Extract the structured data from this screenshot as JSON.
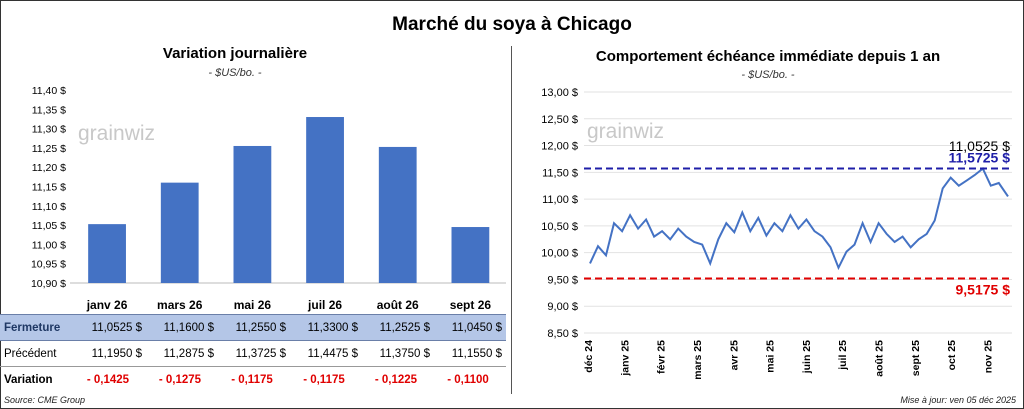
{
  "title": "Marché du soya à Chicago",
  "left": {
    "title": "Variation  journalière",
    "unit": "- $US/bo. -",
    "watermark": "grainwiz",
    "table": {
      "rows": [
        {
          "label": "Fermeture",
          "values": [
            "11,0525  $",
            "11,1600  $",
            "11,2550  $",
            "11,3300  $",
            "11,2525  $",
            "11,0450  $"
          ]
        },
        {
          "label": "Précédent",
          "values": [
            "11,1950  $",
            "11,2875  $",
            "11,3725  $",
            "11,4475  $",
            "11,3750  $",
            "11,1550  $"
          ]
        },
        {
          "label": "Variation",
          "values": [
            "- 0,1425",
            "- 0,1275",
            "- 0,1175",
            "- 0,1175",
            "- 0,1225",
            "- 0,1100"
          ]
        }
      ]
    }
  },
  "right": {
    "title": "Comportement  échéance immédiate depuis 1 an",
    "unit": "- $US/bo. -",
    "watermark": "grainwiz"
  },
  "footer": {
    "source": "Source: CME Group",
    "updated": "Mise à jour: ven 05 déc 2025"
  },
  "chart_data": [
    {
      "type": "bar",
      "title": "Variation  journalière",
      "categories": [
        "janv 26",
        "mars 26",
        "mai 26",
        "juil 26",
        "août 26",
        "sept 26"
      ],
      "values": [
        11.0525,
        11.16,
        11.255,
        11.33,
        11.2525,
        11.045
      ],
      "ylim": [
        10.9,
        11.4
      ],
      "yticks": [
        "10,90 $",
        "10,95 $",
        "11,00 $",
        "11,05 $",
        "11,10 $",
        "11,15 $",
        "11,20 $",
        "11,25 $",
        "11,30 $",
        "11,35 $",
        "11,40 $"
      ],
      "color": "#4472c4",
      "grid": false
    },
    {
      "type": "line",
      "title": "Comportement  échéance immédiate depuis 1 an",
      "xlabels": [
        "déc 24",
        "janv 25",
        "févr 25",
        "mars 25",
        "avr 25",
        "mai 25",
        "juin 25",
        "juil 25",
        "août 25",
        "sept 25",
        "oct 25",
        "nov 25"
      ],
      "ylim": [
        8.5,
        13.0
      ],
      "yticks": [
        "8,50 $",
        "9,00 $",
        "9,50 $",
        "10,00 $",
        "10,50 $",
        "11,00 $",
        "11,50 $",
        "12,00 $",
        "12,50 $",
        "13,00 $"
      ],
      "x": [
        "2024-12-05",
        "2024-12-12",
        "2024-12-19",
        "2024-12-26",
        "2025-01-02",
        "2025-01-09",
        "2025-01-16",
        "2025-01-23",
        "2025-01-30",
        "2025-02-06",
        "2025-02-13",
        "2025-02-20",
        "2025-02-27",
        "2025-03-06",
        "2025-03-13",
        "2025-03-20",
        "2025-03-27",
        "2025-04-03",
        "2025-04-10",
        "2025-04-17",
        "2025-04-24",
        "2025-05-01",
        "2025-05-08",
        "2025-05-15",
        "2025-05-22",
        "2025-05-29",
        "2025-06-05",
        "2025-06-12",
        "2025-06-19",
        "2025-06-26",
        "2025-07-03",
        "2025-07-10",
        "2025-07-17",
        "2025-07-24",
        "2025-07-31",
        "2025-08-07",
        "2025-08-14",
        "2025-08-21",
        "2025-08-28",
        "2025-09-04",
        "2025-09-11",
        "2025-09-18",
        "2025-09-25",
        "2025-10-02",
        "2025-10-09",
        "2025-10-16",
        "2025-10-23",
        "2025-10-30",
        "2025-11-06",
        "2025-11-13",
        "2025-11-20",
        "2025-11-27",
        "2025-12-05"
      ],
      "values": [
        9.8,
        10.12,
        9.95,
        10.55,
        10.4,
        10.7,
        10.45,
        10.62,
        10.3,
        10.4,
        10.25,
        10.45,
        10.3,
        10.2,
        10.15,
        9.8,
        10.25,
        10.55,
        10.38,
        10.75,
        10.4,
        10.65,
        10.32,
        10.55,
        10.4,
        10.7,
        10.45,
        10.62,
        10.4,
        10.3,
        10.1,
        9.72,
        10.02,
        10.15,
        10.55,
        10.2,
        10.55,
        10.35,
        10.2,
        10.3,
        10.1,
        10.25,
        10.35,
        10.6,
        11.2,
        11.4,
        11.25,
        11.35,
        11.45,
        11.57,
        11.25,
        11.3,
        11.05
      ],
      "lines": [
        {
          "label": "11,5725 $",
          "value": 11.5725,
          "color": "#1f1fa8"
        },
        {
          "label": "9,5175 $",
          "value": 9.5175,
          "color": "#e00000"
        }
      ],
      "last_label": "11,0525 $",
      "color": "#4472c4",
      "grid": true
    }
  ]
}
